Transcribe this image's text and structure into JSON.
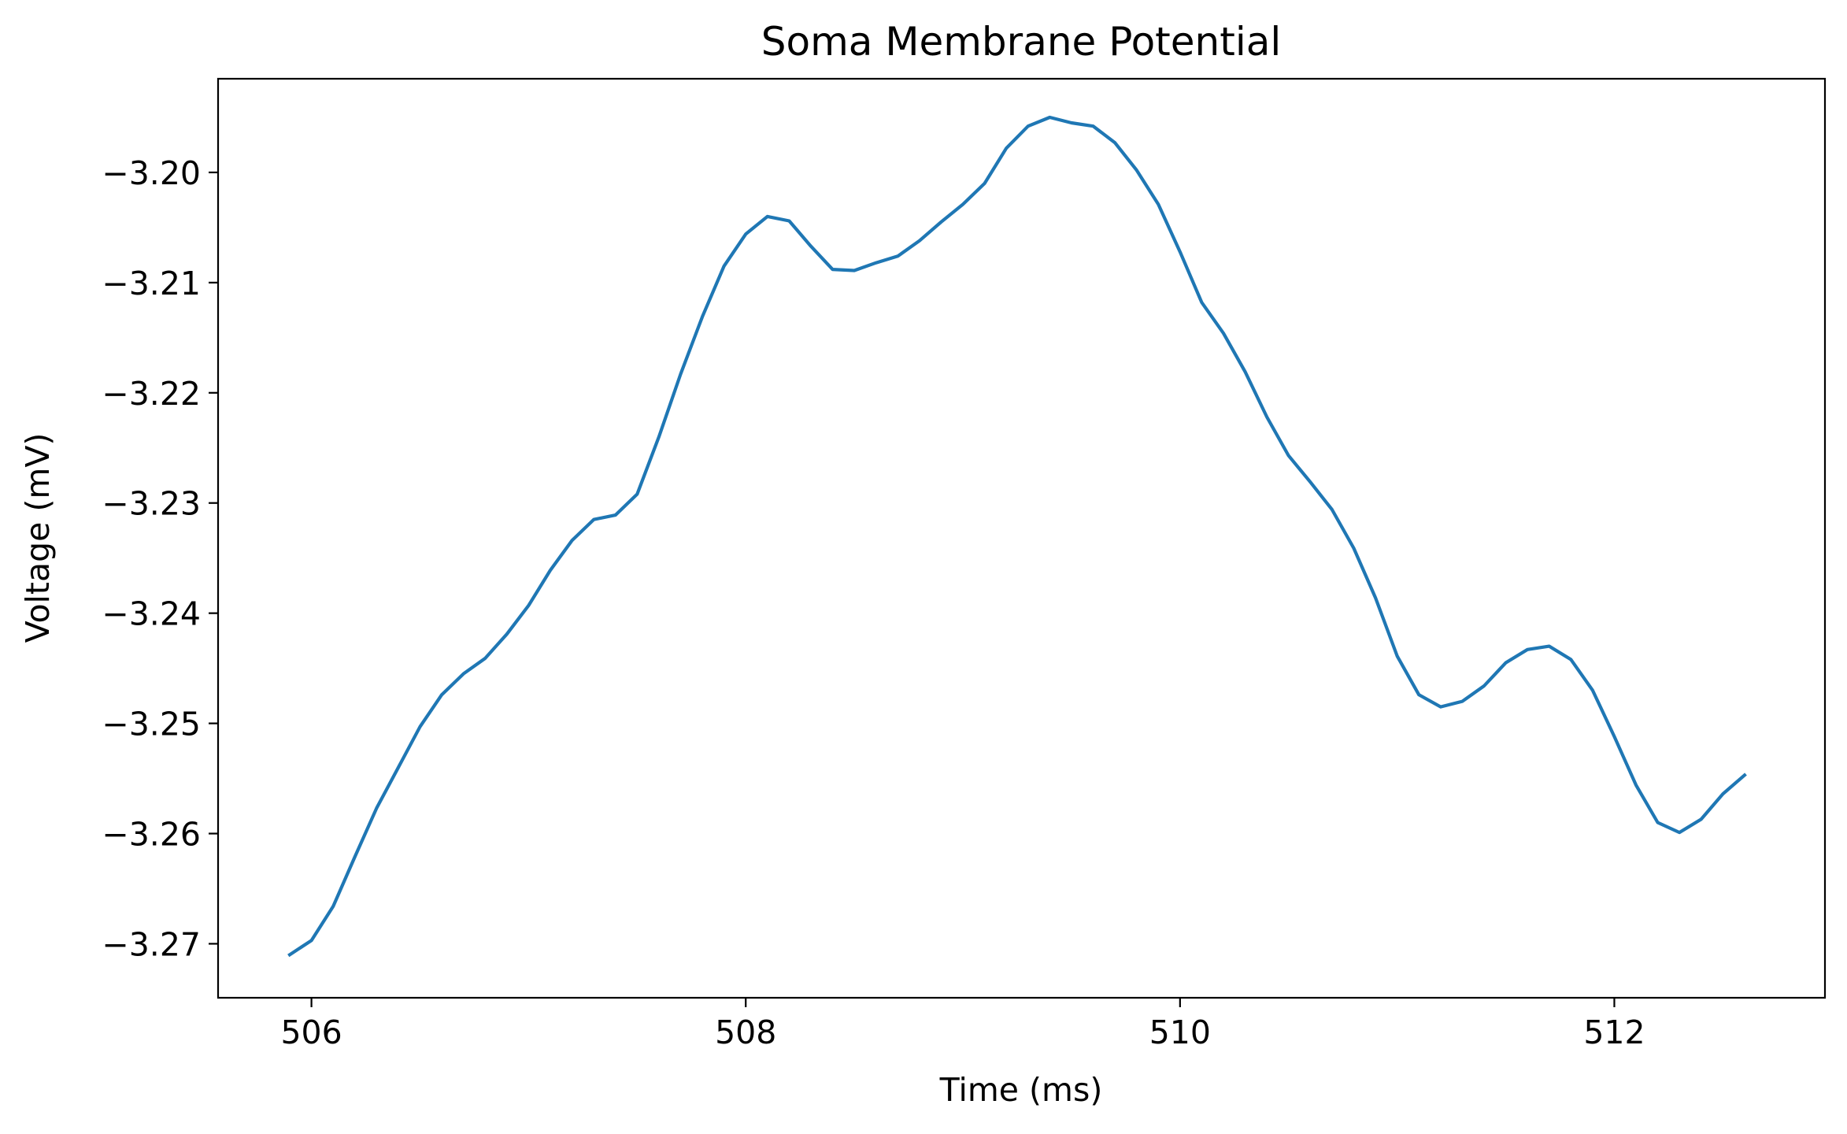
{
  "chart_data": {
    "type": "line",
    "title": "Soma Membrane Potential",
    "xlabel": "Time (ms)",
    "ylabel": "Voltage (mV)",
    "xlim": [
      505.57,
      512.97
    ],
    "ylim": [
      -3.2749,
      -3.1915
    ],
    "xticks": [
      506,
      508,
      510,
      512
    ],
    "xtick_labels": [
      "506",
      "508",
      "510",
      "512"
    ],
    "yticks": [
      -3.2,
      -3.21,
      -3.22,
      -3.23,
      -3.24,
      -3.25,
      -3.26,
      -3.27
    ],
    "ytick_labels": [
      "−3.20",
      "−3.21",
      "−3.22",
      "−3.23",
      "−3.24",
      "−3.25",
      "−3.26",
      "−3.27"
    ],
    "grid": false,
    "series": [
      {
        "name": "soma",
        "color": "#1f77b4",
        "x": [
          505.9,
          506.0,
          506.1,
          506.2,
          506.3,
          506.4,
          506.5,
          506.6,
          506.7,
          506.8,
          506.9,
          507.0,
          507.1,
          507.2,
          507.3,
          507.4,
          507.5,
          507.6,
          507.7,
          507.8,
          507.9,
          508.0,
          508.1,
          508.2,
          508.3,
          508.4,
          508.5,
          508.6,
          508.7,
          508.8,
          508.9,
          509.0,
          509.1,
          509.2,
          509.3,
          509.4,
          509.5,
          509.6,
          509.7,
          509.8,
          509.9,
          510.0,
          510.1,
          510.2,
          510.3,
          510.4,
          510.5,
          510.6,
          510.7,
          510.8,
          510.9,
          511.0,
          511.1,
          511.2,
          511.3,
          511.4,
          511.5,
          511.6,
          511.7,
          511.8,
          511.9,
          512.0,
          512.1,
          512.2,
          512.3,
          512.4,
          512.5,
          512.6
        ],
        "y": [
          -3.271,
          -3.2697,
          -3.2666,
          -3.2621,
          -3.2577,
          -3.254,
          -3.2503,
          -3.2474,
          -3.2455,
          -3.2441,
          -3.2419,
          -3.2393,
          -3.2361,
          -3.2334,
          -3.2315,
          -3.2311,
          -3.2292,
          -3.224,
          -3.2183,
          -3.2131,
          -3.2085,
          -3.2056,
          -3.204,
          -3.2044,
          -3.2067,
          -3.2088,
          -3.2089,
          -3.2082,
          -3.2076,
          -3.2062,
          -3.2045,
          -3.2029,
          -3.201,
          -3.1978,
          -3.1958,
          -3.195,
          -3.1955,
          -3.1958,
          -3.1973,
          -3.1998,
          -3.2029,
          -3.2072,
          -3.2118,
          -3.2146,
          -3.2181,
          -3.2222,
          -3.2257,
          -3.2281,
          -3.2306,
          -3.2341,
          -3.2386,
          -3.2439,
          -3.2474,
          -3.2485,
          -3.248,
          -3.2466,
          -3.2445,
          -3.2433,
          -3.243,
          -3.2442,
          -3.247,
          -3.2512,
          -3.2556,
          -3.259,
          -3.2599,
          -3.2587,
          -3.2564,
          -3.2547
        ]
      }
    ]
  }
}
